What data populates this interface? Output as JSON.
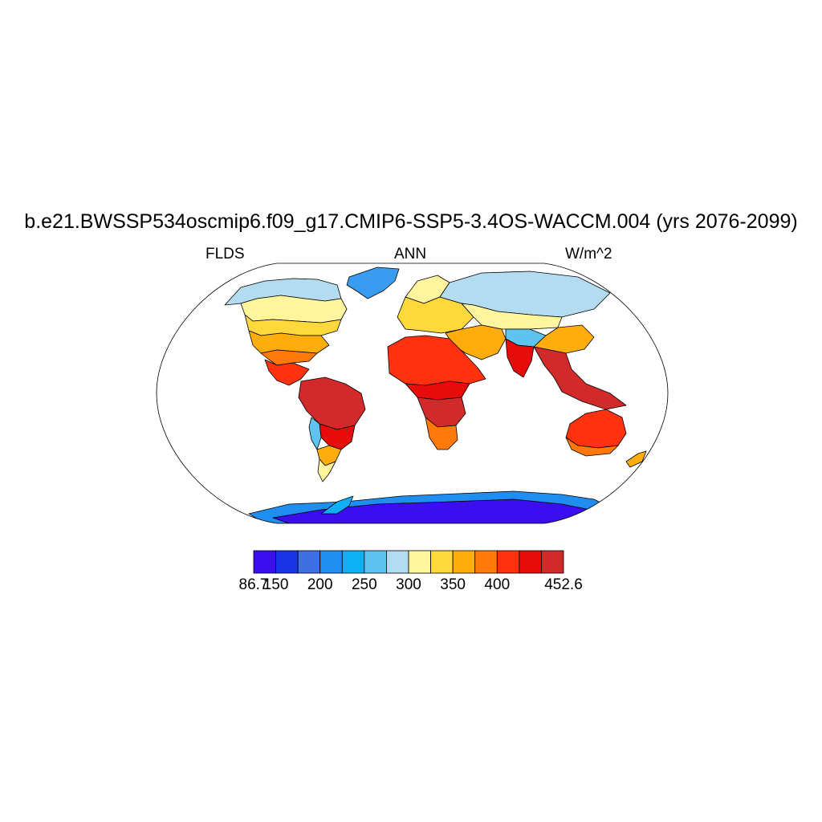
{
  "title": "b.e21.BWSSP534oscmip6.f09_g17.CMIP6-SSP5-3.4OS-WACCM.004 (yrs 2076-2099)",
  "subtitle_left": "FLDS",
  "subtitle_center": "ANN",
  "subtitle_right": "W/m^2",
  "colorbar": {
    "colors": [
      "#3b0ef0",
      "#1c34e8",
      "#3f6fe0",
      "#1f8ef0",
      "#0db0f5",
      "#5fc3f0",
      "#b4dcf0",
      "#fff59e",
      "#ffd83c",
      "#ffad0c",
      "#ff7a0a",
      "#ff3210",
      "#e60c0c",
      "#d22a2a"
    ],
    "labels": [
      "86.7",
      "150",
      "200",
      "250",
      "300",
      "350",
      "400",
      "452.6"
    ]
  },
  "map": {
    "projection": "Robinson",
    "colors": {
      "greenland": "#3a9cf0",
      "arctic_canada": "#b4dcf0",
      "canada_south": "#fff59e",
      "usa_north": "#ffd83c",
      "usa_south": "#ffad0c",
      "florida_gulf": "#ff7a0a",
      "mexico": "#ff3210",
      "amazon": "#d22a2a",
      "brazil_south": "#e60c0c",
      "south_america_south": "#ffad0c",
      "patagonia": "#fff59e",
      "andes": "#5fc3f0",
      "africa": "#ff3210",
      "sahara_south": "#e60c0c",
      "central_africa": "#d22a2a",
      "south_africa": "#ff7a0a",
      "europe": "#ffd83c",
      "scandinavia": "#fff59e",
      "siberia": "#b4dcf0",
      "central_asia": "#fff59e",
      "middle_east": "#ffad0c",
      "tibet": "#5fc3f0",
      "india": "#e60c0c",
      "se_asia": "#d22a2a",
      "china": "#ffad0c",
      "australia": "#ff3210",
      "australia_south": "#ff7a0a",
      "nz": "#ffad0c",
      "antarctica": "#3b0ef0",
      "antarctica_edge": "#1f8ef0",
      "antarctic_peninsula": "#0db0f5"
    }
  }
}
